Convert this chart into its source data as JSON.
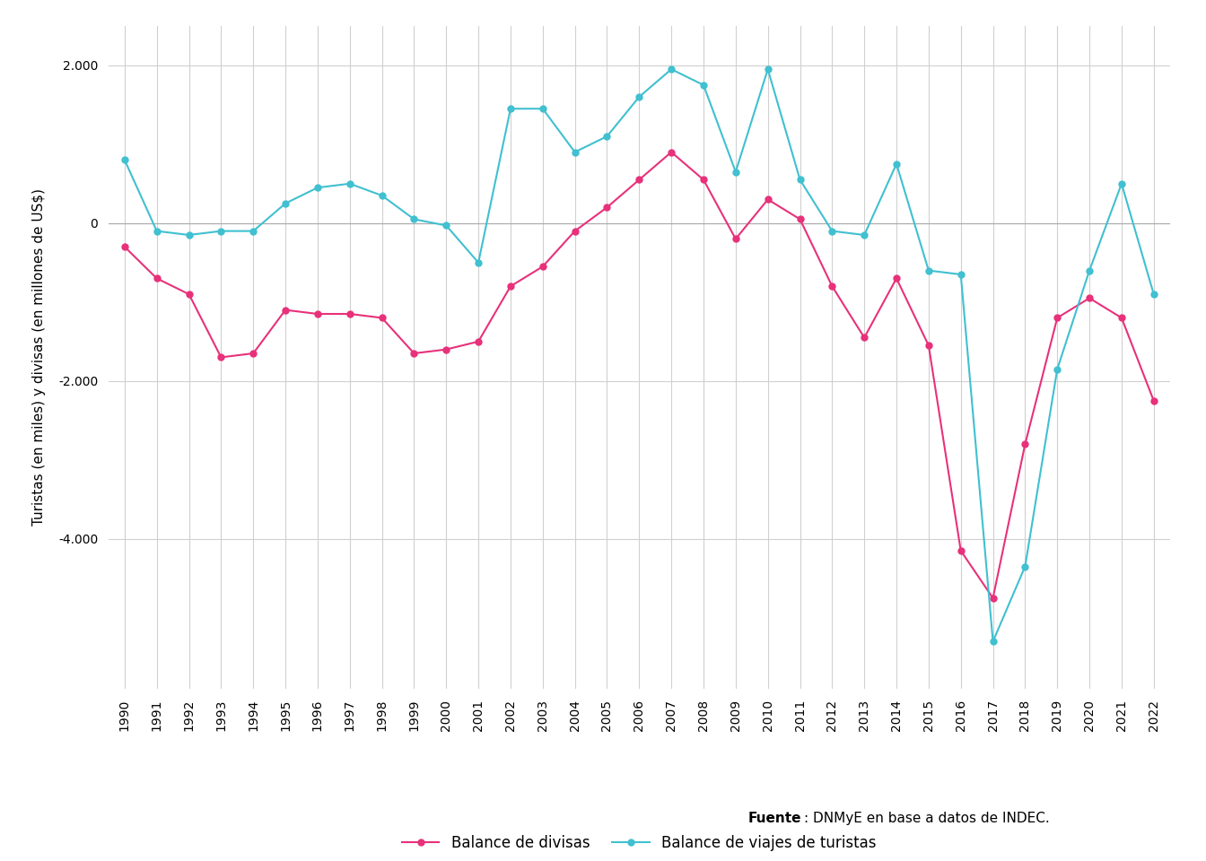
{
  "years": [
    1990,
    1991,
    1992,
    1993,
    1994,
    1995,
    1996,
    1997,
    1998,
    1999,
    2000,
    2001,
    2002,
    2003,
    2004,
    2005,
    2006,
    2007,
    2008,
    2009,
    2010,
    2011,
    2012,
    2013,
    2014,
    2015,
    2016,
    2017,
    2018,
    2019,
    2020,
    2021,
    2022
  ],
  "balance_divisas": [
    -300,
    -700,
    -900,
    -1700,
    -1650,
    -1100,
    -1150,
    -1150,
    -1200,
    -1650,
    -1600,
    -1500,
    -800,
    -550,
    -100,
    200,
    550,
    900,
    550,
    -200,
    300,
    50,
    -800,
    -1450,
    -700,
    -1550,
    -4150,
    -4750,
    -2800,
    -1200,
    -950,
    -1200,
    -2250
  ],
  "balance_turistas": [
    800,
    -100,
    -150,
    -100,
    -100,
    250,
    450,
    500,
    350,
    50,
    -30,
    -500,
    1450,
    1450,
    900,
    1100,
    1600,
    1950,
    1750,
    650,
    1950,
    550,
    -100,
    -150,
    750,
    -600,
    -650,
    -5300,
    -4350,
    -1850,
    -600,
    500,
    -900
  ],
  "divisas_color": "#E8317A",
  "turistas_color": "#40C0D0",
  "ylabel": "Turistas (en miles) y divisas (en millones de US$)",
  "legend_divisas": "Balance de divisas",
  "legend_turistas": "Balance de viajes de turistas",
  "fuente_bold": "Fuente",
  "fuente_rest": ": DNMyE en base a datos de INDEC.",
  "ylim_min": -5900,
  "ylim_max": 2500,
  "yticks": [
    -4000,
    -2000,
    0,
    2000
  ],
  "bg_color": "#FFFFFF",
  "grid_color": "#D0D0D0",
  "marker_size": 5,
  "linewidth": 1.5,
  "tick_fontsize": 10,
  "ylabel_fontsize": 11,
  "legend_fontsize": 12,
  "source_fontsize": 11
}
